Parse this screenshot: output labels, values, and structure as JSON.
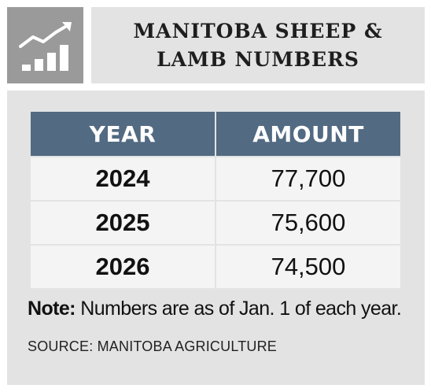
{
  "title": "Manitoba sheep & lamb numbers",
  "icon": "growth-chart-icon",
  "colors": {
    "icon_background": "#9a9a9a",
    "panel_background": "#e3e3e4",
    "header_background": "#526a82",
    "cell_background": "#f4f4f4"
  },
  "chart_data": {
    "type": "table",
    "columns": [
      "YEAR",
      "AMOUNT"
    ],
    "rows": [
      {
        "year": "2024",
        "amount": "77,700"
      },
      {
        "year": "2025",
        "amount": "75,600"
      },
      {
        "year": "2026",
        "amount": "74,500"
      }
    ]
  },
  "note": {
    "label": "Note:",
    "text": "Numbers are as of Jan. 1 of each year."
  },
  "source": "SOURCE: MANITOBA AGRICULTURE"
}
